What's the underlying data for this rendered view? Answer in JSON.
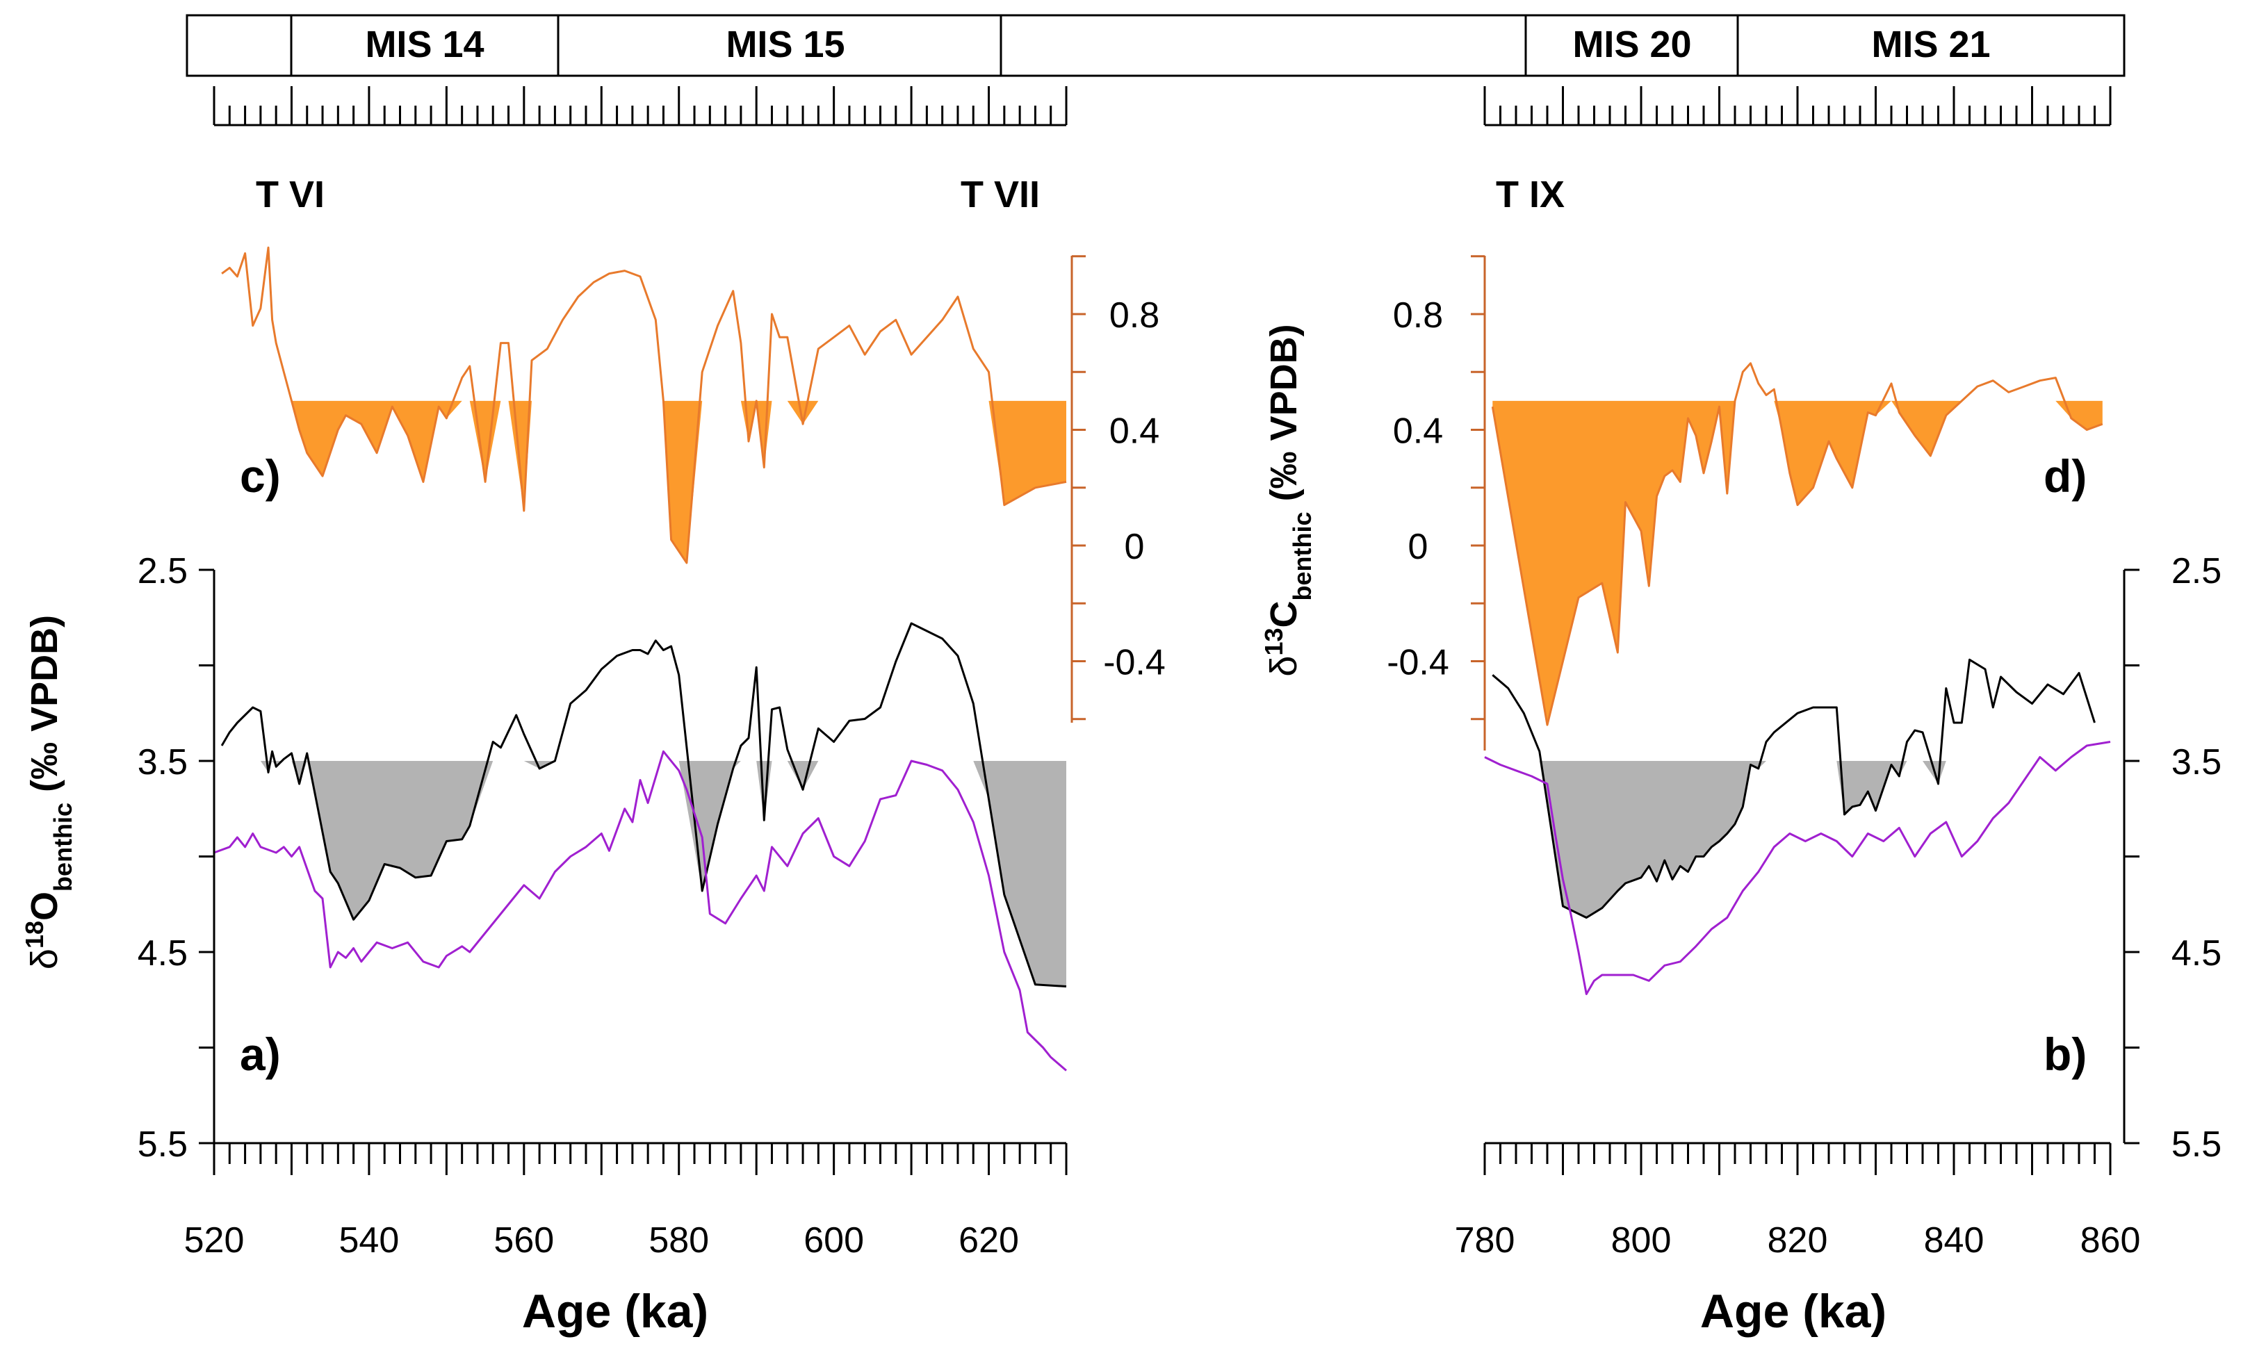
{
  "colors": {
    "d18o_line": "#000000",
    "d18o_fill": "#b3b3b3",
    "d13c_line": "#e87a2c",
    "d13c_fill": "#fc9a2c",
    "purple": "#a020d0",
    "axis_orange": "#c8642a"
  },
  "mis_bar": {
    "labels": [
      "MIS 14",
      "MIS 15",
      "MIS 20",
      "MIS 21"
    ]
  },
  "terminations": [
    "T VI",
    "T VII",
    "T IX"
  ],
  "chart_data": [
    {
      "id": "a",
      "type": "line",
      "panel_label": "a)",
      "xlabel": "Age (ka)",
      "ylabel_main": "δ",
      "ylabel_sup": "18",
      "ylabel_tail": "O",
      "ylabel_sub": "benthic",
      "ylabel_unit": " (‰ VPDB)",
      "xlim": [
        520,
        630
      ],
      "ylim": [
        5.5,
        2.5
      ],
      "y_inverted": true,
      "fill_threshold": 3.5,
      "xticks": [
        520,
        540,
        560,
        580,
        600,
        620
      ],
      "yticks": [
        2.5,
        3.5,
        4.5,
        5.5
      ],
      "series": [
        {
          "name": "δ18O benthic",
          "color_key": "d18o_line",
          "x": [
            521,
            522,
            523,
            525,
            526,
            527,
            527.5,
            528,
            529,
            530,
            531,
            532,
            535,
            536,
            538,
            540,
            542,
            544,
            546,
            548,
            550,
            552,
            553,
            556,
            557,
            559,
            560,
            562,
            564,
            566,
            568,
            570,
            572,
            574,
            575,
            576,
            577,
            578,
            579,
            580,
            583,
            585,
            587,
            588,
            589,
            590,
            591,
            592,
            593,
            594,
            596,
            598,
            600,
            602,
            604,
            606,
            608,
            610,
            612,
            614,
            616,
            618,
            620,
            622,
            626,
            630
          ],
          "y": [
            3.42,
            3.35,
            3.3,
            3.22,
            3.24,
            3.56,
            3.45,
            3.53,
            3.49,
            3.46,
            3.62,
            3.46,
            4.08,
            4.14,
            4.33,
            4.23,
            4.04,
            4.06,
            4.11,
            4.1,
            3.92,
            3.91,
            3.84,
            3.4,
            3.43,
            3.26,
            3.36,
            3.54,
            3.5,
            3.2,
            3.13,
            3.02,
            2.95,
            2.92,
            2.92,
            2.94,
            2.87,
            2.92,
            2.9,
            3.05,
            4.18,
            3.83,
            3.54,
            3.42,
            3.38,
            3.01,
            3.81,
            3.23,
            3.22,
            3.44,
            3.65,
            3.33,
            3.4,
            3.29,
            3.28,
            3.22,
            2.98,
            2.78,
            2.82,
            2.86,
            2.95,
            3.2,
            3.7,
            4.2,
            4.67,
            4.68
          ]
        },
        {
          "name": "purple",
          "color_key": "purple",
          "x": [
            520,
            522,
            523,
            524,
            525,
            526,
            528,
            529,
            530,
            531,
            533,
            534,
            535,
            536,
            537,
            538,
            539,
            540,
            541,
            543,
            545,
            547,
            549,
            550,
            552,
            553,
            555,
            557,
            559,
            560,
            562,
            564,
            566,
            568,
            570,
            571,
            573,
            574,
            575,
            576,
            578,
            580,
            581,
            583,
            584,
            586,
            588,
            590,
            591,
            592,
            594,
            596,
            598,
            600,
            602,
            604,
            606,
            608,
            610,
            612,
            614,
            616,
            618,
            620,
            622,
            624,
            625,
            627,
            628,
            630
          ],
          "y": [
            3.98,
            3.95,
            3.9,
            3.95,
            3.88,
            3.95,
            3.98,
            3.95,
            4.0,
            3.95,
            4.18,
            4.22,
            4.58,
            4.5,
            4.53,
            4.48,
            4.55,
            4.5,
            4.45,
            4.48,
            4.45,
            4.55,
            4.58,
            4.52,
            4.47,
            4.5,
            4.4,
            4.3,
            4.2,
            4.15,
            4.22,
            4.08,
            4.0,
            3.95,
            3.88,
            3.97,
            3.75,
            3.82,
            3.6,
            3.72,
            3.45,
            3.55,
            3.65,
            3.9,
            4.3,
            4.35,
            4.22,
            4.1,
            4.18,
            3.95,
            4.05,
            3.88,
            3.8,
            4.0,
            4.05,
            3.92,
            3.7,
            3.68,
            3.5,
            3.52,
            3.55,
            3.65,
            3.82,
            4.1,
            4.5,
            4.7,
            4.92,
            5.0,
            5.05,
            5.12
          ]
        }
      ]
    },
    {
      "id": "b",
      "type": "line",
      "panel_label": "b)",
      "xlabel": "Age (ka)",
      "xlim": [
        780,
        860
      ],
      "ylim": [
        5.5,
        2.5
      ],
      "y_inverted": true,
      "fill_threshold": 3.5,
      "xticks": [
        780,
        800,
        820,
        840,
        860
      ],
      "yticks": [
        2.5,
        3.5,
        4.5,
        5.5
      ],
      "series": [
        {
          "name": "δ18O benthic",
          "color_key": "d18o_line",
          "x": [
            781,
            783,
            785,
            787,
            790,
            793,
            795,
            797,
            798,
            800,
            801,
            802,
            803,
            804,
            805,
            806,
            807,
            808,
            809,
            810,
            811,
            812,
            813,
            814,
            815,
            816,
            817,
            820,
            822,
            825,
            826,
            827,
            828,
            829,
            830,
            832,
            833,
            834,
            835,
            836,
            838,
            839,
            840,
            841,
            842,
            844,
            845,
            846,
            848,
            850,
            852,
            854,
            856,
            858
          ],
          "y": [
            3.05,
            3.12,
            3.25,
            3.45,
            4.26,
            4.32,
            4.27,
            4.18,
            4.14,
            4.11,
            4.05,
            4.13,
            4.02,
            4.12,
            4.05,
            4.08,
            4.0,
            4.0,
            3.95,
            3.92,
            3.88,
            3.83,
            3.74,
            3.52,
            3.54,
            3.4,
            3.35,
            3.25,
            3.22,
            3.22,
            3.78,
            3.74,
            3.73,
            3.66,
            3.76,
            3.52,
            3.58,
            3.4,
            3.34,
            3.35,
            3.62,
            3.12,
            3.3,
            3.3,
            2.97,
            3.02,
            3.22,
            3.06,
            3.14,
            3.2,
            3.1,
            3.15,
            3.04,
            3.3
          ]
        },
        {
          "name": "purple",
          "color_key": "purple",
          "x": [
            780,
            782,
            784,
            786,
            788,
            789,
            790,
            791,
            792,
            793,
            794,
            795,
            797,
            799,
            801,
            803,
            805,
            807,
            809,
            811,
            813,
            815,
            817,
            819,
            821,
            823,
            825,
            827,
            829,
            831,
            833,
            835,
            837,
            839,
            841,
            843,
            845,
            847,
            849,
            851,
            853,
            855,
            857,
            860
          ],
          "y": [
            3.48,
            3.52,
            3.55,
            3.58,
            3.62,
            3.88,
            4.12,
            4.3,
            4.5,
            4.72,
            4.65,
            4.62,
            4.62,
            4.62,
            4.65,
            4.57,
            4.55,
            4.47,
            4.38,
            4.32,
            4.18,
            4.08,
            3.95,
            3.88,
            3.92,
            3.88,
            3.92,
            4.0,
            3.88,
            3.92,
            3.85,
            4.0,
            3.88,
            3.82,
            4.0,
            3.92,
            3.8,
            3.72,
            3.6,
            3.48,
            3.55,
            3.48,
            3.42,
            3.4
          ]
        }
      ]
    },
    {
      "id": "c",
      "type": "line",
      "panel_label": "c)",
      "xlim": [
        520,
        630
      ],
      "ylim": [
        -0.6,
        1.0
      ],
      "fill_threshold": 0.5,
      "yticks": [
        -0.4,
        0,
        0.4,
        0.8
      ],
      "series": [
        {
          "name": "δ13C benthic",
          "color_key": "d13c_line",
          "x": [
            521,
            522,
            523,
            524,
            525,
            526,
            527,
            527.5,
            528,
            529,
            530,
            531,
            532,
            534,
            536,
            537,
            539,
            541,
            543,
            545,
            547,
            549,
            550,
            552,
            553,
            555,
            557,
            558,
            560,
            561,
            563,
            565,
            567,
            569,
            571,
            573,
            575,
            577,
            578,
            579,
            581,
            583,
            585,
            587,
            588,
            589,
            590,
            591,
            592,
            593,
            594,
            596,
            598,
            600,
            602,
            604,
            606,
            608,
            610,
            612,
            614,
            616,
            618,
            620,
            622,
            626,
            630
          ],
          "y": [
            0.94,
            0.96,
            0.93,
            1.01,
            0.76,
            0.82,
            1.03,
            0.78,
            0.7,
            0.6,
            0.5,
            0.4,
            0.32,
            0.24,
            0.4,
            0.45,
            0.42,
            0.32,
            0.48,
            0.38,
            0.22,
            0.48,
            0.44,
            0.58,
            0.62,
            0.22,
            0.7,
            0.7,
            0.12,
            0.64,
            0.68,
            0.78,
            0.86,
            0.91,
            0.94,
            0.95,
            0.93,
            0.78,
            0.5,
            0.02,
            -0.06,
            0.6,
            0.76,
            0.88,
            0.7,
            0.36,
            0.5,
            0.27,
            0.8,
            0.72,
            0.72,
            0.42,
            0.68,
            0.72,
            0.76,
            0.66,
            0.74,
            0.78,
            0.66,
            0.72,
            0.78,
            0.86,
            0.68,
            0.6,
            0.14,
            0.2,
            0.22
          ]
        }
      ]
    },
    {
      "id": "d",
      "type": "line",
      "panel_label": "d)",
      "ylabel_main": "δ",
      "ylabel_sup": "13",
      "ylabel_tail": "C",
      "ylabel_sub": "benthic",
      "ylabel_unit": " (‰ VPDB)",
      "xlim": [
        780,
        860
      ],
      "ylim": [
        -0.6,
        1.0
      ],
      "fill_threshold": 0.5,
      "yticks": [
        -0.4,
        0,
        0.4,
        0.8
      ],
      "series": [
        {
          "name": "δ13C benthic",
          "color_key": "d13c_line",
          "x": [
            781,
            788,
            792,
            795,
            797,
            798,
            800,
            801,
            802,
            803,
            804,
            805,
            806,
            807,
            808,
            809,
            810,
            811,
            812,
            813,
            814,
            815,
            816,
            817,
            818,
            819,
            820,
            822,
            824,
            825,
            827,
            829,
            830,
            832,
            833,
            835,
            837,
            839,
            841,
            843,
            845,
            847,
            849,
            851,
            853,
            855,
            857,
            859
          ],
          "y": [
            0.48,
            -0.62,
            -0.18,
            -0.13,
            -0.37,
            0.15,
            0.05,
            -0.14,
            0.17,
            0.24,
            0.26,
            0.22,
            0.44,
            0.38,
            0.25,
            0.36,
            0.48,
            0.18,
            0.5,
            0.6,
            0.63,
            0.56,
            0.52,
            0.54,
            0.4,
            0.25,
            0.14,
            0.2,
            0.36,
            0.3,
            0.2,
            0.46,
            0.45,
            0.56,
            0.46,
            0.38,
            0.31,
            0.45,
            0.5,
            0.55,
            0.57,
            0.53,
            0.55,
            0.57,
            0.58,
            0.44,
            0.4,
            0.42
          ]
        }
      ]
    }
  ]
}
